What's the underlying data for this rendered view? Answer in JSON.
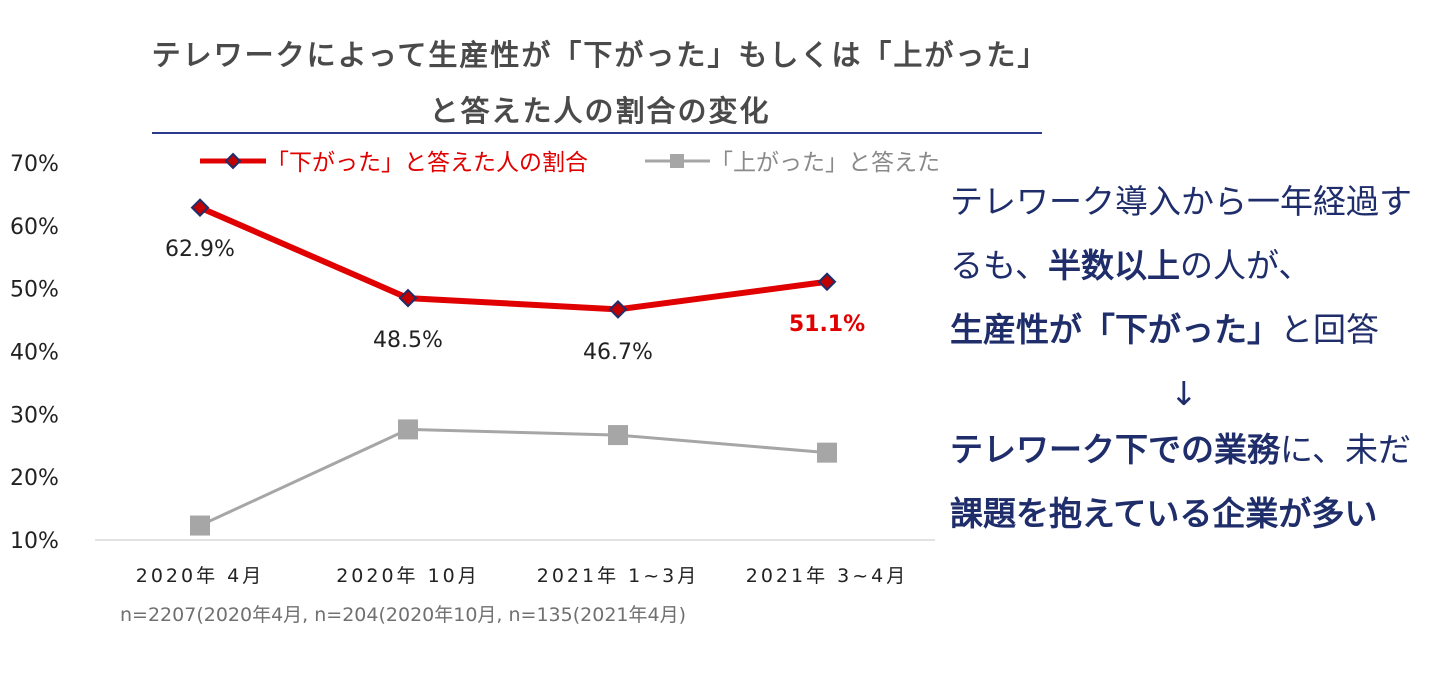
{
  "title": {
    "line1": "テレワークによって生産性が「下がった」もしくは「上がった」",
    "line2": "と答えた人の割合の変化"
  },
  "note": "n=2207(2020年4月, n=204(2020年10月, n=135(2021年4月)",
  "message": {
    "l1": "テレワーク導入から一年経過す",
    "l2a": "るも、",
    "l2b": "半数以上",
    "l2c": "の人が、",
    "l3a": "生産性が「下がった」",
    "l3b": "と回答",
    "arrow": "↓",
    "l4a": "テレワーク下での業務",
    "l4b": "に、未だ",
    "l5": "課題を抱えている企業が多い"
  },
  "colors": {
    "down": "#e00000",
    "down_marker_fill": "#c00000",
    "down_marker_stroke": "#1f2e6b",
    "up": "#a6a6a6",
    "highlight_label": "#e00000"
  },
  "chart_data": {
    "type": "line",
    "categories": [
      "2020年 4月",
      "2020年 10月",
      "2021年 1~3月",
      "2021年 3~4月"
    ],
    "ylim": [
      10,
      70
    ],
    "yticks": [
      "10%",
      "20%",
      "30%",
      "40%",
      "50%",
      "60%",
      "70%"
    ],
    "legend_position": "top",
    "series": [
      {
        "name": "「下がった」と答えた人の割合",
        "values": [
          62.9,
          48.5,
          46.7,
          51.1
        ],
        "labels": [
          "62.9%",
          "48.5%",
          "46.7%",
          "51.1%"
        ],
        "marker": "diamond"
      },
      {
        "name": "「上がった」と答えた人の割合",
        "values": [
          12.3,
          27.6,
          26.7,
          23.9
        ],
        "marker": "square"
      }
    ],
    "grid": false
  }
}
